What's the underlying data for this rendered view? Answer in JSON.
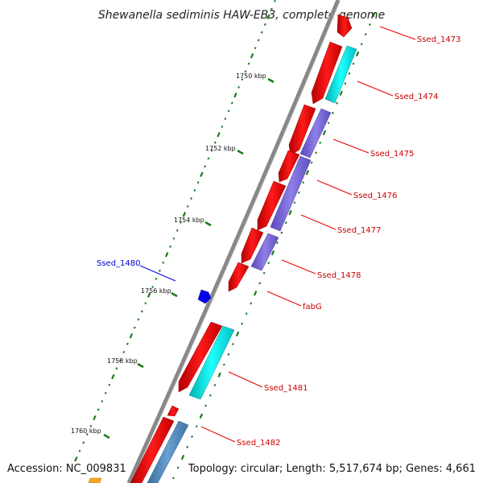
{
  "title": "Shewanella sediminis HAW-EB3, complete genome",
  "footer": {
    "accession": "Accession: NC_009831",
    "stats": "Topology: circular; Length: 5,517,674 bp; Genes: 4,661"
  },
  "kbp_labels": [
    "1750 kbp",
    "1752 kbp",
    "1754 kbp",
    "1756 kbp",
    "1758 kbp",
    "1760 kbp"
  ],
  "gene_labels": [
    {
      "text": "Ssed_1473",
      "color": "#cc0000"
    },
    {
      "text": "Ssed_1474",
      "color": "#cc0000"
    },
    {
      "text": "Ssed_1475",
      "color": "#cc0000"
    },
    {
      "text": "Ssed_1476",
      "color": "#cc0000"
    },
    {
      "text": "Ssed_1477",
      "color": "#cc0000"
    },
    {
      "text": "Ssed_1478",
      "color": "#cc0000"
    },
    {
      "text": "fabG",
      "color": "#cc0000"
    },
    {
      "text": "Ssed_1480",
      "color": "#0000cc"
    },
    {
      "text": "Ssed_1481",
      "color": "#cc0000"
    },
    {
      "text": "Ssed_1482",
      "color": "#cc0000"
    }
  ],
  "colors": {
    "backbone": "#8a8a8a",
    "cds": "#ee0000",
    "cyan_feature": "#00e5e5",
    "purple_feature": "#7b68d8",
    "steel_feature": "#4f86b8",
    "blue_feature": "#0000ee",
    "orange_feature": "#f5a623",
    "tick": "#1a7a1a"
  }
}
